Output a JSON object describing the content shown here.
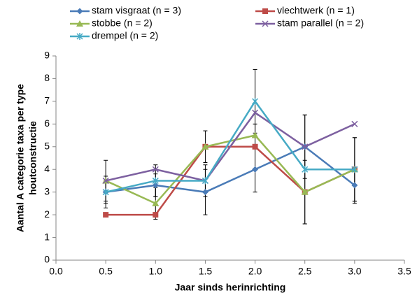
{
  "chart_data": {
    "type": "line",
    "xlabel": "Jaar sinds herinrichting",
    "ylabel": [
      "Aantal A categorie taxa per type",
      "houtconstructie"
    ],
    "x": [
      0.5,
      1.0,
      1.5,
      2.0,
      2.5,
      3.0
    ],
    "xlim": [
      0,
      3.5
    ],
    "xticks": [
      {
        "value": 0,
        "label": "0.0"
      },
      {
        "value": 0.5,
        "label": "0.5"
      },
      {
        "value": 1,
        "label": "1.0"
      },
      {
        "value": 1.5,
        "label": "1.5"
      },
      {
        "value": 2,
        "label": "2.0"
      },
      {
        "value": 2.5,
        "label": "2.5"
      },
      {
        "value": 3,
        "label": "3.0"
      },
      {
        "value": 3.5,
        "label": "3.5"
      }
    ],
    "ylim": [
      0,
      9
    ],
    "yticks": [
      0,
      1,
      2,
      3,
      4,
      5,
      6,
      7,
      8,
      9
    ],
    "grid": false,
    "series": [
      {
        "name": "stam visgraat (n = 3)",
        "color": "#4a7bb7",
        "marker": "diamond",
        "values": [
          3,
          3.3,
          3,
          4,
          5,
          3.3
        ],
        "errors": [
          0.5,
          0.5,
          1.0,
          1.0,
          1.4,
          0.8
        ]
      },
      {
        "name": "vlechtwerk (n = 1)",
        "color": "#be4b48",
        "marker": "square",
        "values": [
          2,
          2,
          5,
          5,
          3,
          4
        ]
      },
      {
        "name": "stobbe (n = 2)",
        "color": "#98b954",
        "marker": "triangle",
        "values": [
          3.5,
          2.5,
          5,
          5.5,
          3,
          4
        ],
        "errors": [
          0.9,
          0.7,
          0.7,
          0.5,
          1.4,
          1.4
        ]
      },
      {
        "name": "stam parallel (n = 2)",
        "color": "#7d60a0",
        "marker": "x",
        "values": [
          3.5,
          4,
          3.5,
          6.5,
          5,
          6
        ]
      },
      {
        "name": "drempel (n = 2)",
        "color": "#46aac5",
        "marker": "star",
        "values": [
          3,
          3.5,
          3.5,
          7,
          4,
          4
        ],
        "errors": [
          0.7,
          0.7,
          0.7,
          1.4,
          2.4,
          1.4
        ]
      }
    ]
  }
}
